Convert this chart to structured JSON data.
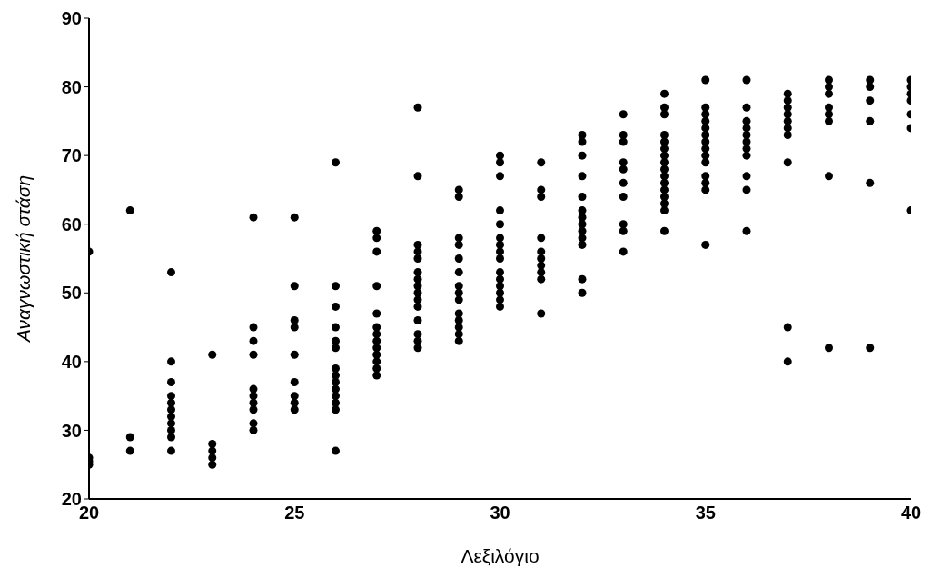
{
  "chart_data": {
    "type": "scatter",
    "xlabel": "Λεξιλόγιο",
    "ylabel": "Αναγνωστική στάση",
    "xlim": [
      20,
      40
    ],
    "xticks": [
      20,
      25,
      30,
      35,
      40
    ],
    "ylim": [
      20,
      90
    ],
    "yticks": [
      20,
      30,
      40,
      50,
      60,
      70,
      80,
      90
    ],
    "grid": false,
    "legend": false,
    "marker": "circle",
    "series": [
      {
        "color": "#000000",
        "x": [
          20,
          20,
          20,
          20,
          21,
          21,
          21,
          22,
          22,
          22,
          22,
          22,
          22,
          22,
          22,
          22,
          22,
          22,
          23,
          23,
          23,
          23,
          23,
          24,
          24,
          24,
          24,
          24,
          24,
          24,
          24,
          24,
          24,
          25,
          25,
          25,
          25,
          25,
          25,
          25,
          25,
          25,
          26,
          26,
          26,
          26,
          26,
          26,
          26,
          26,
          26,
          26,
          26,
          26,
          26,
          26,
          27,
          27,
          27,
          27,
          27,
          27,
          27,
          27,
          27,
          27,
          27,
          27,
          27,
          28,
          28,
          28,
          28,
          28,
          28,
          28,
          28,
          28,
          28,
          28,
          28,
          28,
          28,
          28,
          29,
          29,
          29,
          29,
          29,
          29,
          29,
          29,
          29,
          29,
          29,
          29,
          29,
          29,
          30,
          30,
          30,
          30,
          30,
          30,
          30,
          30,
          30,
          30,
          30,
          30,
          30,
          30,
          30,
          31,
          31,
          31,
          31,
          31,
          31,
          31,
          31,
          31,
          31,
          32,
          32,
          32,
          32,
          32,
          32,
          32,
          32,
          32,
          32,
          32,
          32,
          32,
          33,
          33,
          33,
          33,
          33,
          33,
          33,
          33,
          33,
          33,
          34,
          34,
          34,
          34,
          34,
          34,
          34,
          34,
          34,
          34,
          34,
          34,
          34,
          34,
          34,
          34,
          35,
          35,
          35,
          35,
          35,
          35,
          35,
          35,
          35,
          35,
          35,
          35,
          35,
          35,
          36,
          36,
          36,
          36,
          36,
          36,
          36,
          36,
          36,
          36,
          36,
          37,
          37,
          37,
          37,
          37,
          37,
          37,
          37,
          37,
          37,
          38,
          38,
          38,
          38,
          38,
          38,
          38,
          38,
          39,
          39,
          39,
          39,
          39,
          39,
          40,
          40,
          40,
          40,
          40,
          40,
          40
        ],
        "values": [
          56,
          26,
          25.5,
          25,
          62,
          29,
          27,
          53,
          40,
          37,
          35,
          34,
          33,
          32,
          31,
          30,
          29,
          27,
          41,
          28,
          27,
          26,
          25,
          61,
          45,
          43,
          41,
          36,
          35,
          34,
          33,
          31,
          30,
          61,
          51,
          46,
          45,
          41,
          37,
          35,
          34,
          33,
          69,
          51,
          48,
          45,
          43,
          42,
          39,
          38,
          37,
          36,
          35,
          34,
          33,
          27,
          59,
          58,
          56,
          51,
          47,
          45,
          44,
          43,
          42,
          41,
          40,
          39,
          38,
          77,
          67,
          57,
          56,
          55,
          53,
          52,
          51,
          50,
          49,
          48,
          46,
          44,
          43,
          42,
          65,
          64,
          58,
          57,
          55,
          53,
          51,
          50,
          49,
          47,
          46,
          45,
          44,
          43,
          70,
          69,
          67,
          62,
          60,
          58,
          57,
          56,
          55,
          53,
          52,
          51,
          50,
          49,
          48,
          69,
          65,
          64,
          58,
          56,
          55,
          54,
          53,
          52,
          47,
          73,
          72,
          70,
          67,
          64,
          62,
          61,
          60,
          59,
          58,
          57,
          52,
          50,
          76,
          73,
          72,
          69,
          68,
          66,
          64,
          60,
          59,
          56,
          79,
          77,
          76,
          73,
          72,
          71,
          70,
          69,
          68,
          67,
          66,
          65,
          64,
          63,
          62,
          59,
          81,
          77,
          76,
          75,
          74,
          73,
          72,
          71,
          70,
          69,
          67,
          66,
          65,
          57,
          81,
          77,
          75,
          74,
          73,
          72,
          71,
          70,
          67,
          65,
          59,
          79,
          78,
          77,
          76,
          75,
          74,
          73,
          69,
          45,
          40,
          81,
          80,
          79,
          77,
          76,
          75,
          67,
          42,
          81,
          80,
          78,
          75,
          66,
          42,
          81,
          80,
          79,
          78,
          76,
          74,
          62
        ]
      }
    ]
  }
}
